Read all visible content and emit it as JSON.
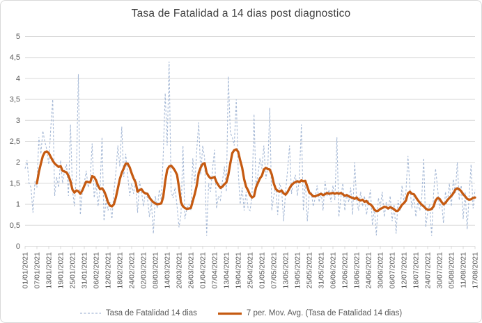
{
  "title": "Tasa de Fatalidad a 14 dias post diagnostico",
  "colors": {
    "daily_line": "#a6b9d6",
    "moving_avg_line": "#c55a11",
    "gridline": "#d9d9d9",
    "axis_text": "#595959",
    "title_text": "#404040",
    "border": "#d9d9d9",
    "background": "#ffffff"
  },
  "legend": [
    {
      "label": "Tasa de Fatalidad 14 dias"
    },
    {
      "label": "7 per. Mov. Avg. (Tasa de Fatalidad 14 dias)"
    }
  ],
  "chart_data": {
    "type": "line",
    "title": "Tasa de Fatalidad a 14 dias post diagnostico",
    "xlabel": "",
    "ylabel": "",
    "ylim": [
      0,
      5
    ],
    "y_tick_step": 0.5,
    "y_tick_labels": [
      "0",
      "0,5",
      "1",
      "1,5",
      "2",
      "2,5",
      "3",
      "3,5",
      "4",
      "4,5",
      "5"
    ],
    "grid": true,
    "legend_position": "bottom",
    "x_tick_interval_days": 6,
    "x_tick_labels": [
      "01/01/2021",
      "07/01/2021",
      "13/01/2021",
      "19/01/2021",
      "25/01/2021",
      "31/01/2021",
      "06/02/2021",
      "12/02/2021",
      "18/02/2021",
      "24/02/2021",
      "02/03/2021",
      "08/03/2021",
      "14/03/2021",
      "20/03/2021",
      "26/03/2021",
      "01/04/2021",
      "07/04/2021",
      "13/04/2021",
      "19/04/2021",
      "25/04/2021",
      "01/05/2021",
      "07/05/2021",
      "13/05/2021",
      "19/05/2021",
      "25/05/2021",
      "31/05/2021",
      "06/06/2021",
      "12/06/2021",
      "18/06/2021",
      "24/06/2021",
      "30/06/2021",
      "06/07/2021",
      "12/07/2021",
      "18/07/2021",
      "24/07/2021",
      "30/07/2021",
      "05/08/2021",
      "11/08/2021",
      "17/08/2021"
    ],
    "series": [
      {
        "name": "Tasa de Fatalidad 14 dias",
        "style": "thin-dashed",
        "values": [
          1.85,
          2.05,
          1.5,
          1.4,
          0.8,
          1.55,
          1.4,
          2.6,
          2.2,
          2.75,
          2.5,
          2.3,
          1.95,
          2.8,
          3.5,
          1.2,
          1.65,
          1.4,
          2.05,
          1.5,
          1.8,
          1.95,
          1.2,
          2.9,
          1.35,
          0.95,
          1.7,
          4.1,
          0.75,
          1.3,
          1.5,
          1.8,
          1.4,
          1.6,
          2.45,
          1.15,
          1.5,
          0.95,
          1.4,
          2.6,
          0.6,
          1.1,
          0.85,
          1.05,
          0.65,
          1.3,
          1.75,
          2.4,
          1.9,
          2.85,
          1.65,
          2.2,
          1.7,
          1.2,
          1.5,
          1.25,
          1.6,
          0.8,
          1.55,
          1.3,
          0.95,
          1.3,
          1.15,
          0.7,
          1.05,
          0.3,
          1.2,
          0.9,
          1.35,
          1.1,
          2.15,
          3.65,
          2.4,
          4.4,
          1.3,
          1.15,
          1.4,
          0.95,
          0.45,
          0.75,
          2.4,
          0.65,
          0.9,
          1.0,
          0.85,
          2.1,
          1.5,
          2.3,
          2.95,
          1.7,
          2.4,
          2.1,
          0.25,
          1.5,
          1.3,
          1.85,
          2.3,
          0.9,
          1.2,
          1.1,
          1.55,
          1.9,
          1.3,
          4.05,
          2.7,
          2.6,
          2.4,
          3.5,
          1.8,
          1.0,
          1.4,
          0.85,
          1.3,
          0.9,
          0.85,
          1.2,
          3.15,
          1.45,
          1.7,
          2.1,
          1.85,
          2.4,
          1.6,
          1.9,
          3.3,
          0.85,
          1.2,
          1.45,
          0.75,
          1.5,
          1.35,
          0.6,
          1.3,
          1.8,
          2.4,
          1.25,
          1.55,
          1.7,
          1.2,
          1.65,
          2.9,
          0.85,
          1.55,
          0.6,
          1.25,
          1.3,
          0.95,
          1.15,
          1.45,
          1.05,
          1.3,
          0.85,
          1.55,
          1.2,
          1.35,
          1.05,
          1.45,
          1.1,
          2.6,
          0.7,
          1.15,
          1.5,
          0.85,
          1.25,
          1.05,
          1.4,
          0.75,
          2.0,
          1.1,
          0.85,
          1.3,
          0.95,
          1.2,
          0.75,
          1.05,
          1.35,
          0.5,
          0.9,
          0.26,
          1.15,
          0.95,
          1.3,
          0.7,
          1.05,
          0.85,
          1.2,
          0.6,
          1.0,
          0.3,
          1.1,
          0.85,
          1.45,
          1.05,
          1.3,
          2.15,
          1.4,
          0.9,
          1.2,
          0.7,
          1.05,
          0.85,
          1.15,
          2.1,
          0.45,
          0.8,
          1.0,
          0.25,
          1.25,
          1.85,
          1.4,
          0.9,
          1.1,
          0.55,
          1.3,
          1.05,
          1.5,
          0.95,
          1.6,
          1.25,
          2.0,
          1.1,
          1.45,
          0.65,
          1.3,
          0.4,
          1.2,
          1.95,
          0.9,
          1.35
        ]
      },
      {
        "name": "7 per. Mov. Avg. (Tasa de Fatalidad 14 dias)",
        "style": "thick-solid",
        "values": [
          null,
          null,
          null,
          null,
          null,
          null,
          1.5,
          1.77,
          1.97,
          2.15,
          2.24,
          2.26,
          2.22,
          2.13,
          2.04,
          1.97,
          1.93,
          1.89,
          1.91,
          1.8,
          1.78,
          1.76,
          1.68,
          1.55,
          1.35,
          1.28,
          1.33,
          1.31,
          1.25,
          1.33,
          1.44,
          1.54,
          1.53,
          1.52,
          1.67,
          1.65,
          1.57,
          1.44,
          1.36,
          1.38,
          1.32,
          1.2,
          1.05,
          0.97,
          0.95,
          1.0,
          1.16,
          1.38,
          1.6,
          1.75,
          1.86,
          1.97,
          1.97,
          1.88,
          1.74,
          1.62,
          1.52,
          1.3,
          1.34,
          1.36,
          1.29,
          1.26,
          1.25,
          1.16,
          1.1,
          1.05,
          1.02,
          1.0,
          1.01,
          1.02,
          1.17,
          1.55,
          1.82,
          1.9,
          1.92,
          1.87,
          1.8,
          1.7,
          1.4,
          1.05,
          0.95,
          0.91,
          0.89,
          0.9,
          0.91,
          1.08,
          1.25,
          1.45,
          1.75,
          1.88,
          1.96,
          1.98,
          1.75,
          1.67,
          1.62,
          1.63,
          1.65,
          1.53,
          1.45,
          1.39,
          1.42,
          1.48,
          1.52,
          1.7,
          1.98,
          2.22,
          2.29,
          2.31,
          2.25,
          2.05,
          1.87,
          1.6,
          1.42,
          1.33,
          1.22,
          1.16,
          1.19,
          1.4,
          1.51,
          1.62,
          1.68,
          1.83,
          1.87,
          1.84,
          1.83,
          1.71,
          1.5,
          1.37,
          1.32,
          1.3,
          1.33,
          1.26,
          1.23,
          1.29,
          1.38,
          1.46,
          1.5,
          1.53,
          1.55,
          1.53,
          1.57,
          1.55,
          1.56,
          1.42,
          1.28,
          1.24,
          1.19,
          1.19,
          1.21,
          1.23,
          1.25,
          1.22,
          1.24,
          1.27,
          1.25,
          1.26,
          1.27,
          1.25,
          1.27,
          1.25,
          1.27,
          1.24,
          1.2,
          1.22,
          1.19,
          1.17,
          1.15,
          1.13,
          1.16,
          1.11,
          1.09,
          1.11,
          1.06,
          1.08,
          1.02,
          1.0,
          0.95,
          0.87,
          0.84,
          0.85,
          0.89,
          0.91,
          0.94,
          0.93,
          0.9,
          0.93,
          0.91,
          0.88,
          0.84,
          0.85,
          0.91,
          0.99,
          1.03,
          1.09,
          1.26,
          1.3,
          1.25,
          1.24,
          1.17,
          1.1,
          1.04,
          0.99,
          0.95,
          0.9,
          0.87,
          0.87,
          0.89,
          0.95,
          1.09,
          1.15,
          1.13,
          1.06,
          1.0,
          1.03,
          1.1,
          1.15,
          1.2,
          1.26,
          1.35,
          1.38,
          1.36,
          1.31,
          1.24,
          1.19,
          1.13,
          1.11,
          1.12,
          1.15,
          1.16
        ]
      }
    ]
  }
}
